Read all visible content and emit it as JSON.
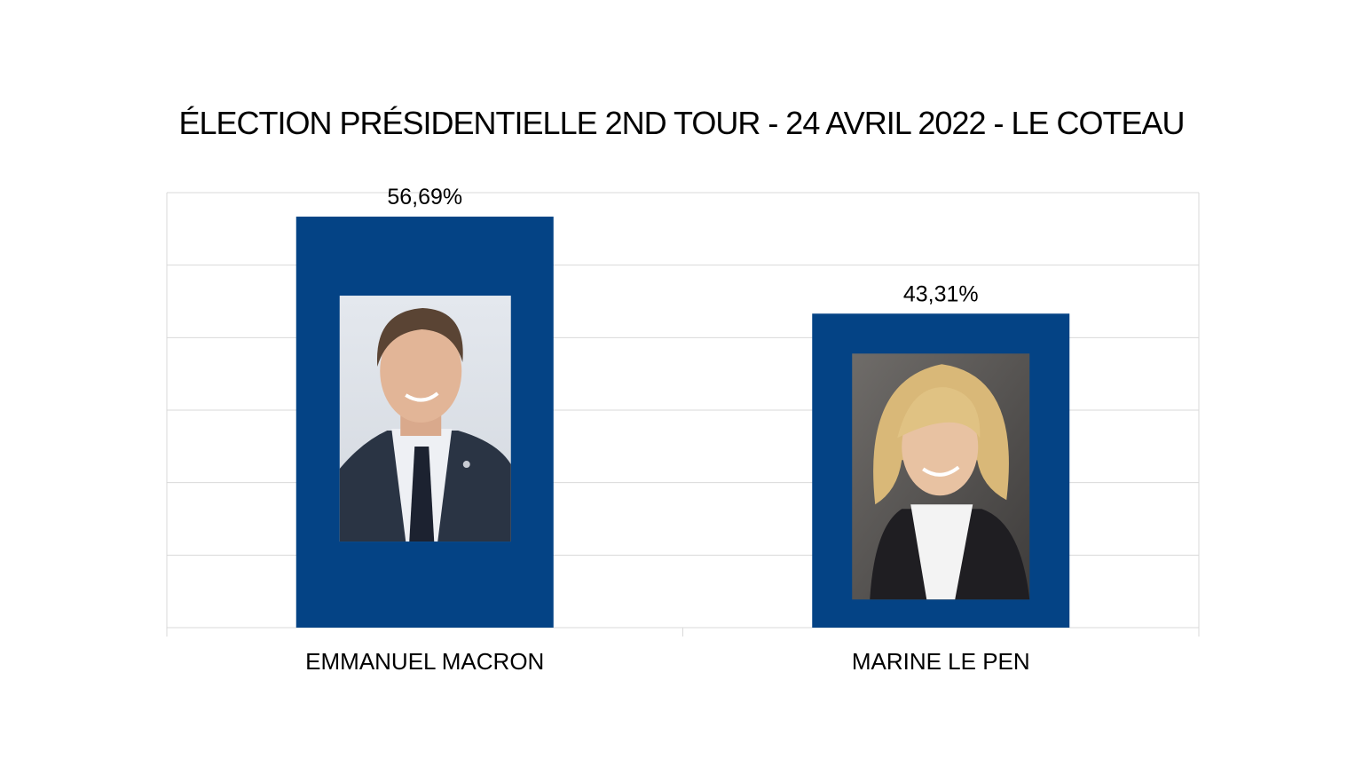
{
  "chart_data": {
    "type": "bar",
    "title": "ÉLECTION PRÉSIDENTIELLE 2ND TOUR - 24 AVRIL 2022 - LE COTEAU",
    "xlabel": "",
    "ylabel": "",
    "categories": [
      "EMMANUEL MACRON",
      "MARINE LE PEN"
    ],
    "values": [
      56.69,
      43.31
    ],
    "value_labels": [
      "56,69%",
      "43,31%"
    ],
    "ylim": [
      0,
      60
    ],
    "grid": true,
    "bar_color": "#044385",
    "photo_icons": [
      "portrait-emmanuel-macron",
      "portrait-marine-le-pen"
    ]
  }
}
